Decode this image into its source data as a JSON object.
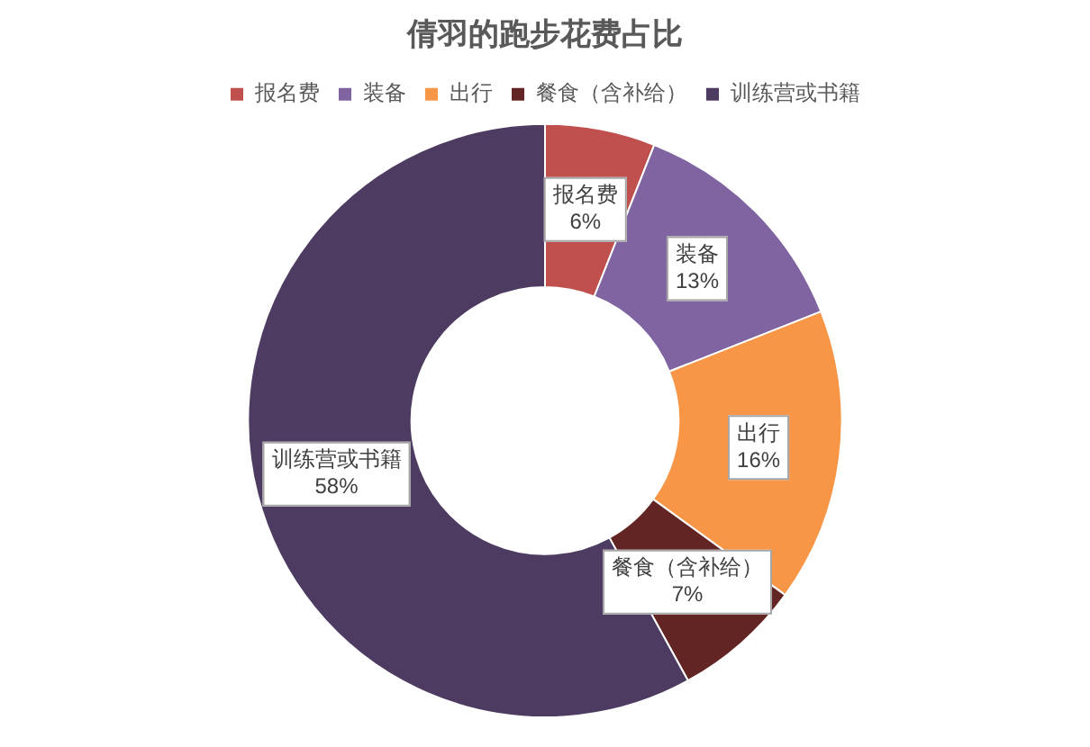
{
  "chart_data": {
    "type": "donut",
    "title": "倩羽的跑步花费占比",
    "categories": [
      "报名费",
      "装备",
      "出行",
      "餐食（含补给）",
      "训练营或书籍"
    ],
    "values": [
      6,
      13,
      16,
      7,
      58
    ],
    "colors": [
      "#c0504d",
      "#8064a2",
      "#f79646",
      "#632523",
      "#4d3b62"
    ],
    "value_labels": [
      "6%",
      "13%",
      "16%",
      "7%",
      "58%"
    ],
    "legend": "top"
  }
}
